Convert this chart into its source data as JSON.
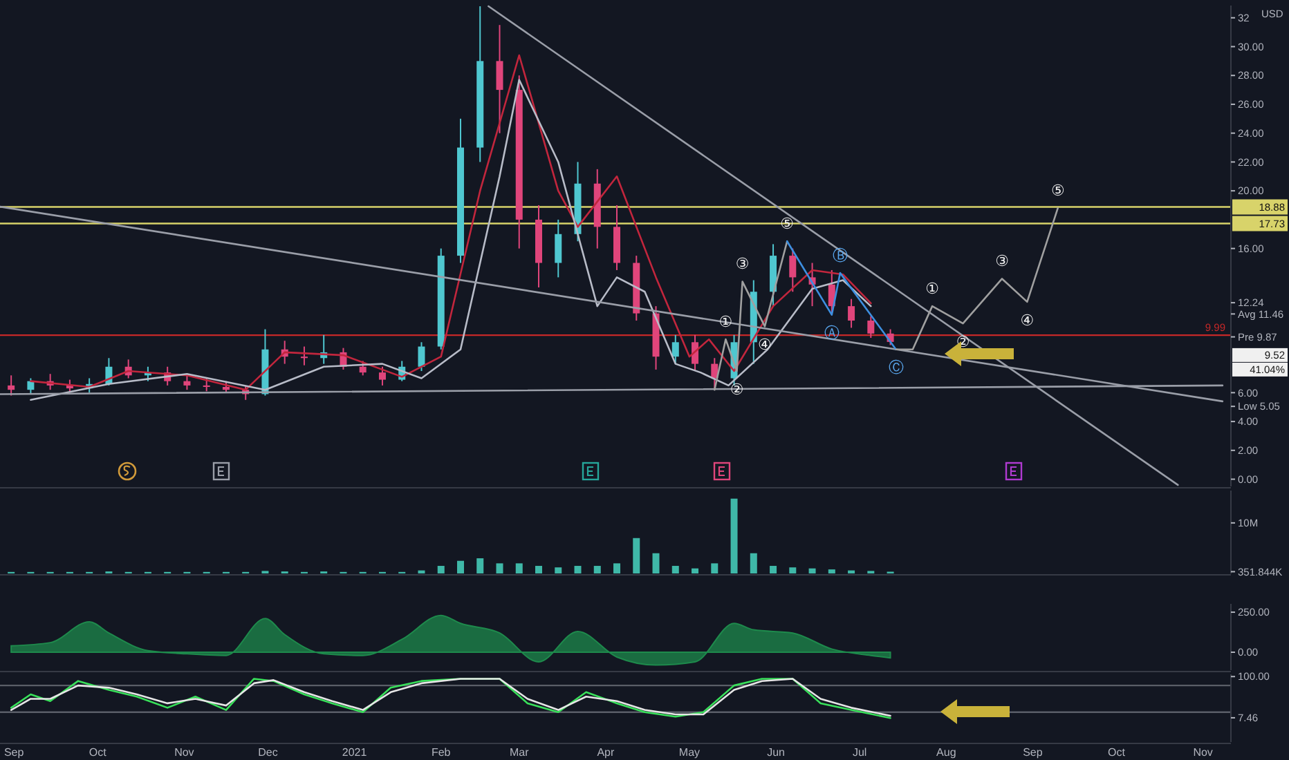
{
  "chart_data": [
    {
      "type": "candlestick",
      "xlim": [
        "2020-08-27",
        "2021-11-11"
      ],
      "ylim": [
        -0.5,
        32.85
      ],
      "ylabel": "USD",
      "yticks": [
        {
          "value": 0,
          "label": "0.00"
        },
        {
          "value": 2,
          "label": "2.00"
        },
        {
          "value": 4,
          "label": "4.00"
        },
        {
          "value": 5.05,
          "label": "Low 5.05"
        },
        {
          "value": 6,
          "label": "6.00"
        },
        {
          "value": 9.87,
          "label": "Pre 9.87"
        },
        {
          "value": 11.46,
          "label": "Avg 11.46"
        },
        {
          "value": 12.24,
          "label": "12.24"
        },
        {
          "value": 16,
          "label": "16.00"
        },
        {
          "value": 20,
          "label": "20.00"
        },
        {
          "value": 22,
          "label": "22.00"
        },
        {
          "value": 24,
          "label": "24.00"
        },
        {
          "value": 26,
          "label": "26.00"
        },
        {
          "value": 28,
          "label": "28.00"
        },
        {
          "value": 30,
          "label": "30.00"
        },
        {
          "value": 32,
          "label": "32"
        }
      ],
      "tick_labels": "y",
      "grid": false,
      "colors": [
        "#e0457b",
        "#4fc7d0",
        "#e0457b",
        "#e0457b",
        "#4fc7d0",
        "#4fc7d0",
        "#e0457b",
        "#4fc7d0",
        "#e0457b",
        "#e0457b",
        "#e0457b",
        "#e0457b",
        "#e0457b",
        "#4fc7d0",
        "#e0457b",
        "#e0457b",
        "#4fc7d0",
        "#e0457b",
        "#e0457b",
        "#e0457b",
        "#4fc7d0",
        "#4fc7d0",
        "#4fc7d0",
        "#4fc7d0",
        "#4fc7d0",
        "#e0457b",
        "#e0457b",
        "#e0457b",
        "#4fc7d0",
        "#4fc7d0",
        "#e0457b",
        "#e0457b",
        "#e0457b",
        "#e0457b",
        "#4fc7d0",
        "#e0457b",
        "#e0457b",
        "#4fc7d0",
        "#4fc7d0",
        "#4fc7d0",
        "#e0457b",
        "#e0457b",
        "#e0457b",
        "#e0457b",
        "#e0457b",
        "#e0457b"
      ],
      "x": [
        "2020-08-31",
        "2020-09-07",
        "2020-09-14",
        "2020-09-21",
        "2020-09-28",
        "2020-10-05",
        "2020-10-12",
        "2020-10-19",
        "2020-10-26",
        "2020-11-02",
        "2020-11-09",
        "2020-11-16",
        "2020-11-23",
        "2020-11-30",
        "2020-12-07",
        "2020-12-14",
        "2020-12-21",
        "2020-12-28",
        "2021-01-04",
        "2021-01-11",
        "2021-01-18",
        "2021-01-25",
        "2021-02-01",
        "2021-02-08",
        "2021-02-15",
        "2021-02-22",
        "2021-03-01",
        "2021-03-08",
        "2021-03-15",
        "2021-03-22",
        "2021-03-29",
        "2021-04-05",
        "2021-04-12",
        "2021-04-19",
        "2021-04-26",
        "2021-05-03",
        "2021-05-10",
        "2021-05-17",
        "2021-05-24",
        "2021-05-31",
        "2021-06-07",
        "2021-06-14",
        "2021-06-21",
        "2021-06-28",
        "2021-07-05",
        "2021-07-12"
      ],
      "ohlc": [
        [
          6.5,
          7.2,
          5.8,
          6.2
        ],
        [
          6.2,
          7.0,
          5.9,
          6.8
        ],
        [
          6.8,
          7.3,
          6.2,
          6.5
        ],
        [
          6.5,
          6.9,
          6.0,
          6.3
        ],
        [
          6.3,
          7.0,
          6.0,
          6.6
        ],
        [
          6.6,
          8.4,
          6.5,
          7.8
        ],
        [
          7.8,
          8.3,
          7.0,
          7.2
        ],
        [
          7.2,
          7.8,
          6.8,
          7.4
        ],
        [
          7.4,
          7.8,
          6.5,
          6.8
        ],
        [
          6.8,
          7.2,
          6.2,
          6.5
        ],
        [
          6.5,
          7.0,
          6.1,
          6.4
        ],
        [
          6.4,
          6.8,
          6.0,
          6.2
        ],
        [
          6.2,
          6.5,
          5.5,
          5.9
        ],
        [
          5.9,
          10.4,
          5.8,
          9.0
        ],
        [
          9.0,
          9.6,
          8.0,
          8.5
        ],
        [
          8.5,
          9.2,
          7.9,
          8.4
        ],
        [
          8.4,
          10.0,
          8.0,
          8.8
        ],
        [
          8.8,
          9.1,
          7.6,
          7.8
        ],
        [
          7.8,
          8.2,
          7.2,
          7.4
        ],
        [
          7.4,
          7.8,
          6.5,
          6.9
        ],
        [
          6.9,
          8.2,
          6.8,
          7.8
        ],
        [
          7.8,
          9.5,
          7.5,
          9.2
        ],
        [
          9.2,
          16,
          9,
          15.5
        ],
        [
          15.5,
          25,
          15,
          23
        ],
        [
          23,
          32.8,
          22,
          29
        ],
        [
          29,
          31.5,
          24,
          27
        ],
        [
          27,
          28,
          16,
          18
        ],
        [
          18,
          19,
          13.3,
          15
        ],
        [
          15,
          18,
          14,
          17
        ],
        [
          17,
          22,
          16.5,
          20.5
        ],
        [
          20.5,
          21.5,
          16,
          17.5
        ],
        [
          17.5,
          19,
          14.5,
          15
        ],
        [
          15,
          15.5,
          11,
          11.5
        ],
        [
          11.5,
          12,
          7.6,
          8.5
        ],
        [
          8.5,
          10,
          8,
          9.5
        ],
        [
          9.5,
          10,
          7.5,
          8
        ],
        [
          8,
          8.4,
          6.2,
          7
        ],
        [
          7,
          10,
          6.5,
          9.5
        ],
        [
          9.5,
          13.8,
          8,
          13
        ],
        [
          13,
          16.3,
          12,
          15.5
        ],
        [
          15.5,
          16,
          13,
          14
        ],
        [
          14,
          15,
          12,
          13.5
        ],
        [
          13.5,
          14.5,
          11.5,
          12
        ],
        [
          12,
          12.5,
          10.5,
          11
        ],
        [
          11,
          11.3,
          9.8,
          10.1
        ],
        [
          10.1,
          10.4,
          9.3,
          9.52
        ]
      ],
      "series": [
        {
          "type": "line",
          "color": "#c2263d",
          "x": [
            "2020-09-07",
            "2020-09-28",
            "2020-10-12",
            "2020-11-02",
            "2020-11-23",
            "2020-12-07",
            "2020-12-28",
            "2021-01-18",
            "2021-02-01",
            "2021-02-15",
            "2021-03-01",
            "2021-03-15",
            "2021-03-22",
            "2021-04-05",
            "2021-04-19",
            "2021-05-01",
            "2021-05-08",
            "2021-05-17",
            "2021-05-31",
            "2021-06-14",
            "2021-06-25",
            "2021-07-05"
          ],
          "values": [
            6.8,
            6.4,
            7.5,
            7.2,
            6.2,
            8.8,
            8.6,
            7.1,
            8.5,
            20,
            29.4,
            20,
            17.5,
            21,
            14,
            8.5,
            9.7,
            7.5,
            12,
            14.5,
            14.2,
            12.2
          ]
        },
        {
          "type": "line",
          "color": "#b8bcc8",
          "x": [
            "2020-09-07",
            "2020-10-05",
            "2020-11-02",
            "2020-11-30",
            "2020-12-21",
            "2021-01-11",
            "2021-01-25",
            "2021-02-08",
            "2021-02-22",
            "2021-03-01",
            "2021-03-15",
            "2021-03-29",
            "2021-04-05",
            "2021-04-15",
            "2021-04-26",
            "2021-05-05",
            "2021-05-15",
            "2021-05-29",
            "2021-06-14",
            "2021-06-25",
            "2021-07-05"
          ],
          "values": [
            5.5,
            6.6,
            7.3,
            6.2,
            7.8,
            8.0,
            7.0,
            9,
            21,
            27.7,
            22,
            12,
            14,
            13,
            8,
            7.4,
            6.5,
            9,
            13.2,
            13.8,
            12
          ]
        },
        {
          "type": "line",
          "color": "#9a9ea8",
          "x": [
            "2021-02-18",
            "2021-10-23"
          ],
          "values": [
            32.8,
            -0.4
          ]
        },
        {
          "type": "line",
          "color": "#9a9ea8",
          "x": [
            "2020-08-27",
            "2021-11-08"
          ],
          "values": [
            18.9,
            5.4
          ]
        },
        {
          "type": "line",
          "color": "#9a9ea8",
          "x": [
            "2020-08-27",
            "2021-11-08"
          ],
          "values": [
            5.9,
            6.5
          ]
        },
        {
          "type": "line",
          "color": "#a0a0a0",
          "x": [
            "2021-05-10",
            "2021-05-14",
            "2021-05-18",
            "2021-05-20",
            "2021-05-28",
            "2021-06-05"
          ],
          "values": [
            6.2,
            9.7,
            7.5,
            13.7,
            10.6,
            16.5
          ],
          "value_labels": [
            null,
            "①",
            "②",
            "③",
            "④",
            "⑤"
          ]
        },
        {
          "type": "line",
          "color": "#3d8fe0",
          "x": [
            "2021-06-05",
            "2021-06-21",
            "2021-06-24",
            "2021-07-14"
          ],
          "values": [
            16.5,
            11.4,
            14.3,
            9.0
          ],
          "value_labels": [
            null,
            "Ⓐ",
            "Ⓑ",
            "Ⓒ"
          ]
        },
        {
          "type": "line",
          "color": "#a0a0a0",
          "x": [
            "2021-07-14",
            "2021-07-20",
            "2021-07-27",
            "2021-08-07",
            "2021-08-21",
            "2021-08-30",
            "2021-09-10"
          ],
          "values": [
            9.0,
            9.0,
            12.0,
            10.8,
            13.9,
            12.3,
            18.8
          ],
          "value_labels": [
            null,
            null,
            "①",
            "②",
            "③",
            "④",
            "⑤"
          ]
        }
      ],
      "ref_lines": [
        {
          "axis": "y",
          "value": 18.88,
          "label": "18.88",
          "color": "#d8d36a"
        },
        {
          "axis": "y",
          "value": 17.73,
          "label": "17.73",
          "color": "#d8d36a"
        },
        {
          "axis": "y",
          "value": 9.99,
          "label": "9.99",
          "color": "#c62828"
        }
      ],
      "annotations": [
        "9.52",
        "41.04%"
      ]
    },
    {
      "type": "bar",
      "xlim": [
        "2020-08-27",
        "2021-11-11"
      ],
      "ylim": [
        0,
        16400000
      ],
      "yticks": [
        {
          "value": 351844,
          "label": "351.844K"
        },
        {
          "value": 10000000,
          "label": "10M"
        }
      ],
      "tick_labels": "y",
      "color": "#3fb8a8",
      "x": [
        "2020-08-31",
        "2020-09-07",
        "2020-09-14",
        "2020-09-21",
        "2020-09-28",
        "2020-10-05",
        "2020-10-12",
        "2020-10-19",
        "2020-10-26",
        "2020-11-02",
        "2020-11-09",
        "2020-11-16",
        "2020-11-23",
        "2020-11-30",
        "2020-12-07",
        "2020-12-14",
        "2020-12-21",
        "2020-12-28",
        "2021-01-04",
        "2021-01-11",
        "2021-01-18",
        "2021-01-25",
        "2021-02-01",
        "2021-02-08",
        "2021-02-15",
        "2021-02-22",
        "2021-03-01",
        "2021-03-08",
        "2021-03-15",
        "2021-03-22",
        "2021-03-29",
        "2021-04-05",
        "2021-04-12",
        "2021-04-19",
        "2021-04-26",
        "2021-05-03",
        "2021-05-10",
        "2021-05-17",
        "2021-05-24",
        "2021-05-31",
        "2021-06-07",
        "2021-06-14",
        "2021-06-21",
        "2021-06-28",
        "2021-07-05",
        "2021-07-12"
      ],
      "values": [
        300000,
        300000,
        300000,
        300000,
        300000,
        400000,
        300000,
        300000,
        300000,
        300000,
        300000,
        300000,
        300000,
        500000,
        400000,
        300000,
        400000,
        300000,
        300000,
        300000,
        300000,
        600000,
        1500000,
        2500000,
        3000000,
        2000000,
        2000000,
        1500000,
        1200000,
        1500000,
        1500000,
        2000000,
        7000000,
        4000000,
        1500000,
        1000000,
        2000000,
        14800000,
        4000000,
        1500000,
        1200000,
        1000000,
        800000,
        600000,
        500000,
        350000
      ]
    },
    {
      "type": "area",
      "xlim": [
        "2020-08-27",
        "2021-11-11"
      ],
      "ylim": [
        -112,
        302
      ],
      "yticks": [
        {
          "value": 0,
          "label": "0.00"
        },
        {
          "value": 250,
          "label": "250.00"
        }
      ],
      "tick_labels": "y",
      "color": "#1e8a4c",
      "x": [
        "2020-08-31",
        "2020-09-14",
        "2020-09-28",
        "2020-10-05",
        "2020-10-19",
        "2020-11-02",
        "2020-11-16",
        "2020-11-30",
        "2020-12-07",
        "2020-12-21",
        "2021-01-04",
        "2021-01-18",
        "2021-02-01",
        "2021-02-08",
        "2021-02-22",
        "2021-03-08",
        "2021-03-22",
        "2021-04-05",
        "2021-04-19",
        "2021-05-03",
        "2021-05-17",
        "2021-05-24",
        "2021-06-07",
        "2021-06-21",
        "2021-07-05",
        "2021-07-12"
      ],
      "values": [
        40,
        60,
        190,
        120,
        10,
        -10,
        -20,
        210,
        110,
        -10,
        -20,
        80,
        230,
        180,
        120,
        -60,
        130,
        -30,
        -80,
        -60,
        180,
        140,
        120,
        20,
        -20,
        -35
      ]
    },
    {
      "type": "line",
      "xlim": [
        "2020-08-27",
        "2021-11-11"
      ],
      "ylim": [
        -47,
        105
      ],
      "yticks": [
        {
          "value": 7.46,
          "label": "7.46"
        },
        {
          "value": 100,
          "label": "100.00"
        }
      ],
      "xticks": [
        {
          "value": "2020-09-01",
          "label": "Sep"
        },
        {
          "value": "2020-10-01",
          "label": "Oct"
        },
        {
          "value": "2020-11-01",
          "label": "Nov"
        },
        {
          "value": "2020-12-01",
          "label": "Dec"
        },
        {
          "value": "2021-01-01",
          "label": "2021"
        },
        {
          "value": "2021-02-01",
          "label": "Feb"
        },
        {
          "value": "2021-03-01",
          "label": "Mar"
        },
        {
          "value": "2021-04-01",
          "label": "Apr"
        },
        {
          "value": "2021-05-01",
          "label": "May"
        },
        {
          "value": "2021-06-01",
          "label": "Jun"
        },
        {
          "value": "2021-07-01",
          "label": "Jul"
        },
        {
          "value": "2021-08-01",
          "label": "Aug"
        },
        {
          "value": "2021-09-01",
          "label": "Sep"
        },
        {
          "value": "2021-10-01",
          "label": "Oct"
        },
        {
          "value": "2021-11-01",
          "label": "Nov"
        }
      ],
      "ref_lines": [
        {
          "axis": "y",
          "value": 80,
          "color": "#5a5e68"
        },
        {
          "axis": "y",
          "value": 20,
          "color": "#5a5e68"
        }
      ],
      "x": [
        "2020-08-31",
        "2020-09-07",
        "2020-09-14",
        "2020-09-24",
        "2020-10-05",
        "2020-10-15",
        "2020-10-26",
        "2020-11-05",
        "2020-11-16",
        "2020-11-26",
        "2020-12-03",
        "2020-12-14",
        "2020-12-24",
        "2021-01-04",
        "2021-01-14",
        "2021-01-25",
        "2021-02-08",
        "2021-02-22",
        "2021-03-04",
        "2021-03-15",
        "2021-03-25",
        "2021-04-05",
        "2021-04-15",
        "2021-04-26",
        "2021-05-06",
        "2021-05-17",
        "2021-05-27",
        "2021-06-07",
        "2021-06-17",
        "2021-06-28",
        "2021-07-12"
      ],
      "series": [
        {
          "color": "#39e05a",
          "values": [
            30,
            60,
            45,
            90,
            70,
            55,
            30,
            55,
            25,
            95,
            90,
            60,
            40,
            20,
            75,
            90,
            95,
            95,
            40,
            20,
            65,
            40,
            20,
            10,
            20,
            80,
            95,
            95,
            40,
            25,
            7
          ]
        },
        {
          "color": "#e6e6e6",
          "values": [
            25,
            50,
            50,
            80,
            75,
            60,
            40,
            50,
            35,
            85,
            92,
            65,
            45,
            25,
            65,
            85,
            95,
            95,
            50,
            25,
            55,
            45,
            25,
            15,
            15,
            70,
            90,
            95,
            50,
            30,
            12
          ]
        }
      ]
    }
  ]
}
